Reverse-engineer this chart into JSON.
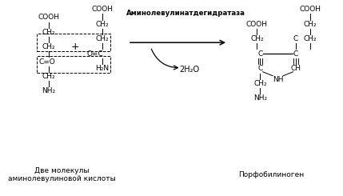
{
  "bg_color": "#ffffff",
  "font_color": "#000000",
  "title_left": "Две молекулы\nаминолевулиновой кислоты",
  "title_right": "Порфобилиноген",
  "enzyme_label": "Аминолевулинатдегидратаза",
  "water_label": "2H₂O",
  "figsize": [
    4.29,
    2.45
  ],
  "dpi": 100
}
